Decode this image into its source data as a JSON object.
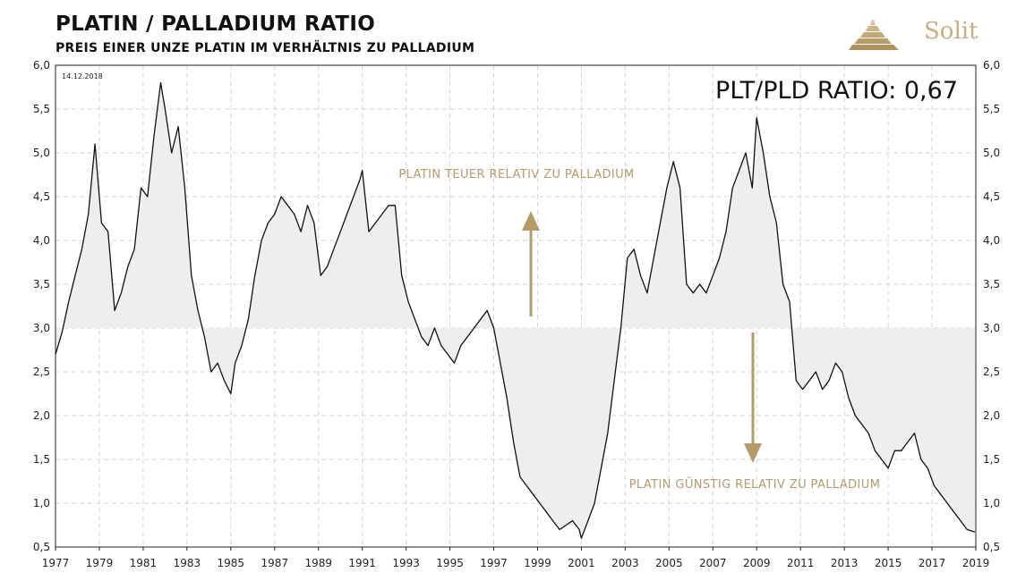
{
  "header": {
    "title": "PLATIN / PALLADIUM RATIO",
    "subtitle": "PREIS EINER UNZE PLATIN IM VERHÄLTNIS ZU PALLADIUM",
    "brand": "Solit"
  },
  "colors": {
    "line": "#111111",
    "fill": "#eeeeee",
    "accent": "#b59a6a",
    "grid": "#d4d4d4"
  },
  "chart_data": {
    "type": "area",
    "title": "PLATIN / PALLADIUM RATIO",
    "subtitle": "PREIS EINER UNZE PLATIN IM VERHÄLTNIS ZU PALLADIUM",
    "date_label": "14.12.2018",
    "current_ratio_label": "PLT/PLD RATIO: 0,67",
    "baseline": 3.0,
    "xlim": [
      1977,
      2019
    ],
    "ylim": [
      0.5,
      6.0
    ],
    "x_ticks": [
      "1977",
      "1979",
      "1981",
      "1983",
      "1985",
      "1987",
      "1989",
      "1991",
      "1993",
      "1995",
      "1997",
      "1999",
      "2001",
      "2003",
      "2005",
      "2007",
      "2009",
      "2011",
      "2013",
      "2015",
      "2017",
      "2019"
    ],
    "y_ticks": [
      "0,5",
      "1,0",
      "1,5",
      "2,0",
      "2,5",
      "3,0",
      "3,5",
      "4,0",
      "4,5",
      "5,0",
      "5,5",
      "6,0"
    ],
    "annotations": {
      "upper": "PLATIN TEUER RELATIV ZU PALLADIUM",
      "lower": "PLATIN GÜNSTIG RELATIV ZU PALLADIUM"
    },
    "series": [
      {
        "name": "Platin/Palladium Ratio",
        "x": [
          1977.0,
          1977.3,
          1977.6,
          1977.9,
          1978.2,
          1978.5,
          1978.8,
          1979.1,
          1979.4,
          1979.7,
          1980.0,
          1980.3,
          1980.6,
          1980.9,
          1981.2,
          1981.5,
          1981.8,
          1982.0,
          1982.3,
          1982.6,
          1982.9,
          1983.2,
          1983.5,
          1983.8,
          1984.1,
          1984.4,
          1984.7,
          1985.0,
          1985.2,
          1985.5,
          1985.8,
          1986.1,
          1986.4,
          1986.7,
          1987.0,
          1987.3,
          1987.6,
          1987.9,
          1988.2,
          1988.5,
          1988.8,
          1989.1,
          1989.4,
          1989.7,
          1990.0,
          1990.3,
          1990.6,
          1990.9,
          1991.0,
          1991.3,
          1991.6,
          1991.9,
          1992.2,
          1992.5,
          1992.8,
          1993.1,
          1993.4,
          1993.7,
          1994.0,
          1994.3,
          1994.6,
          1994.9,
          1995.2,
          1995.5,
          1995.8,
          1996.1,
          1996.4,
          1996.7,
          1997.0,
          1997.3,
          1997.6,
          1997.9,
          1998.2,
          1998.5,
          1998.8,
          1999.1,
          1999.4,
          1999.7,
          2000.0,
          2000.3,
          2000.6,
          2000.9,
          2001.0,
          2001.3,
          2001.6,
          2001.9,
          2002.2,
          2002.5,
          2002.8,
          2003.1,
          2003.4,
          2003.7,
          2004.0,
          2004.3,
          2004.6,
          2004.9,
          2005.2,
          2005.5,
          2005.8,
          2006.1,
          2006.4,
          2006.7,
          2007.0,
          2007.3,
          2007.6,
          2007.9,
          2008.2,
          2008.5,
          2008.8,
          2009.0,
          2009.3,
          2009.6,
          2009.9,
          2010.2,
          2010.5,
          2010.8,
          2011.1,
          2011.4,
          2011.7,
          2012.0,
          2012.3,
          2012.6,
          2012.9,
          2013.2,
          2013.5,
          2013.8,
          2014.1,
          2014.4,
          2014.7,
          2015.0,
          2015.3,
          2015.6,
          2015.9,
          2016.2,
          2016.5,
          2016.8,
          2017.1,
          2017.4,
          2017.7,
          2018.0,
          2018.3,
          2018.6,
          2018.96
        ],
        "values": [
          2.7,
          2.95,
          3.3,
          3.6,
          3.9,
          4.3,
          5.1,
          4.2,
          4.1,
          3.2,
          3.4,
          3.7,
          3.9,
          4.6,
          4.5,
          5.2,
          5.8,
          5.5,
          5.0,
          5.3,
          4.6,
          3.6,
          3.2,
          2.9,
          2.5,
          2.6,
          2.4,
          2.25,
          2.6,
          2.8,
          3.1,
          3.6,
          4.0,
          4.2,
          4.3,
          4.5,
          4.4,
          4.3,
          4.1,
          4.4,
          4.2,
          3.6,
          3.7,
          3.9,
          4.1,
          4.3,
          4.5,
          4.7,
          4.8,
          4.1,
          4.2,
          4.3,
          4.4,
          4.4,
          3.6,
          3.3,
          3.1,
          2.9,
          2.8,
          3.0,
          2.8,
          2.7,
          2.6,
          2.8,
          2.9,
          3.0,
          3.1,
          3.2,
          3.0,
          2.6,
          2.2,
          1.7,
          1.3,
          1.2,
          1.1,
          1.0,
          0.9,
          0.8,
          0.7,
          0.75,
          0.8,
          0.7,
          0.6,
          0.8,
          1.0,
          1.4,
          1.8,
          2.4,
          3.0,
          3.8,
          3.9,
          3.6,
          3.4,
          3.8,
          4.2,
          4.6,
          4.9,
          4.6,
          3.5,
          3.4,
          3.5,
          3.4,
          3.6,
          3.8,
          4.1,
          4.6,
          4.8,
          5.0,
          4.6,
          5.4,
          5.0,
          4.5,
          4.2,
          3.5,
          3.3,
          2.4,
          2.3,
          2.4,
          2.5,
          2.3,
          2.4,
          2.6,
          2.5,
          2.2,
          2.0,
          1.9,
          1.8,
          1.6,
          1.5,
          1.4,
          1.6,
          1.6,
          1.7,
          1.8,
          1.5,
          1.4,
          1.2,
          1.1,
          1.0,
          0.9,
          0.8,
          0.7,
          0.67
        ]
      }
    ]
  }
}
